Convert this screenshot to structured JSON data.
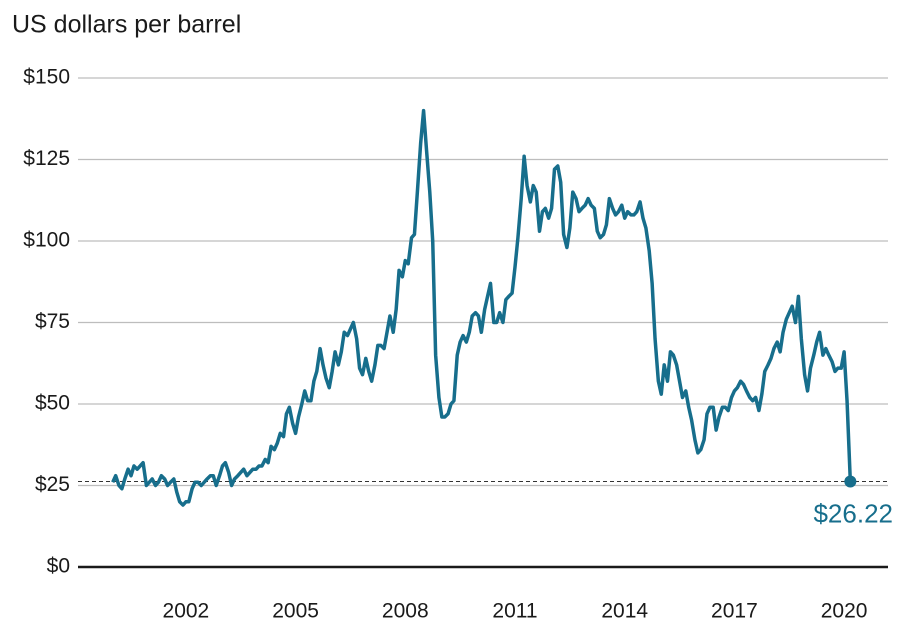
{
  "chart_data": {
    "type": "line",
    "title": "US dollars per barrel",
    "xlim": [
      1999.05,
      2021.2
    ],
    "xticks": [
      2002,
      2005,
      2008,
      2011,
      2014,
      2017,
      2020
    ],
    "ylim": [
      0,
      150
    ],
    "yticks": [
      {
        "value": 0,
        "label": "$0"
      },
      {
        "value": 25,
        "label": "$25"
      },
      {
        "value": 50,
        "label": "$50"
      },
      {
        "value": 75,
        "label": "$75"
      },
      {
        "value": 100,
        "label": "$100"
      },
      {
        "value": 125,
        "label": "$125"
      },
      {
        "value": 150,
        "label": "$150"
      }
    ],
    "grid": true,
    "annotation": {
      "value": 26.22,
      "label": "$26.22"
    },
    "series": [
      {
        "color": "#176e8c",
        "x": [
          2000,
          2000.08,
          2000.17,
          2000.25,
          2000.33,
          2000.42,
          2000.5,
          2000.58,
          2000.67,
          2000.75,
          2000.83,
          2000.92,
          2001,
          2001.08,
          2001.17,
          2001.25,
          2001.33,
          2001.42,
          2001.5,
          2001.58,
          2001.67,
          2001.75,
          2001.83,
          2001.92,
          2002,
          2002.08,
          2002.17,
          2002.25,
          2002.33,
          2002.42,
          2002.5,
          2002.58,
          2002.67,
          2002.75,
          2002.83,
          2002.92,
          2003,
          2003.08,
          2003.17,
          2003.25,
          2003.33,
          2003.42,
          2003.5,
          2003.58,
          2003.67,
          2003.75,
          2003.83,
          2003.92,
          2004,
          2004.08,
          2004.17,
          2004.25,
          2004.33,
          2004.42,
          2004.5,
          2004.58,
          2004.67,
          2004.75,
          2004.83,
          2004.92,
          2005,
          2005.08,
          2005.17,
          2005.25,
          2005.33,
          2005.42,
          2005.5,
          2005.58,
          2005.67,
          2005.75,
          2005.83,
          2005.92,
          2006,
          2006.08,
          2006.17,
          2006.25,
          2006.33,
          2006.42,
          2006.5,
          2006.58,
          2006.67,
          2006.75,
          2006.83,
          2006.92,
          2007,
          2007.08,
          2007.17,
          2007.25,
          2007.33,
          2007.42,
          2007.5,
          2007.58,
          2007.67,
          2007.75,
          2007.83,
          2007.92,
          2008,
          2008.08,
          2008.17,
          2008.25,
          2008.33,
          2008.42,
          2008.5,
          2008.58,
          2008.67,
          2008.75,
          2008.83,
          2008.92,
          2009,
          2009.08,
          2009.17,
          2009.25,
          2009.33,
          2009.42,
          2009.5,
          2009.58,
          2009.67,
          2009.75,
          2009.83,
          2009.92,
          2010,
          2010.08,
          2010.17,
          2010.25,
          2010.33,
          2010.42,
          2010.5,
          2010.58,
          2010.67,
          2010.75,
          2010.83,
          2010.92,
          2011,
          2011.08,
          2011.17,
          2011.25,
          2011.33,
          2011.42,
          2011.5,
          2011.58,
          2011.67,
          2011.75,
          2011.83,
          2011.92,
          2012,
          2012.08,
          2012.17,
          2012.25,
          2012.33,
          2012.42,
          2012.5,
          2012.58,
          2012.67,
          2012.75,
          2012.83,
          2012.92,
          2013,
          2013.08,
          2013.17,
          2013.25,
          2013.33,
          2013.42,
          2013.5,
          2013.58,
          2013.67,
          2013.75,
          2013.83,
          2013.92,
          2014,
          2014.08,
          2014.17,
          2014.25,
          2014.33,
          2014.42,
          2014.5,
          2014.58,
          2014.67,
          2014.75,
          2014.83,
          2014.92,
          2015,
          2015.08,
          2015.17,
          2015.25,
          2015.33,
          2015.42,
          2015.5,
          2015.58,
          2015.67,
          2015.75,
          2015.83,
          2015.92,
          2016,
          2016.08,
          2016.17,
          2016.25,
          2016.33,
          2016.42,
          2016.5,
          2016.58,
          2016.67,
          2016.75,
          2016.83,
          2016.92,
          2017,
          2017.08,
          2017.17,
          2017.25,
          2017.33,
          2017.42,
          2017.5,
          2017.58,
          2017.67,
          2017.75,
          2017.83,
          2017.92,
          2018,
          2018.08,
          2018.17,
          2018.25,
          2018.33,
          2018.42,
          2018.5,
          2018.58,
          2018.67,
          2018.75,
          2018.83,
          2018.92,
          2019,
          2019.08,
          2019.17,
          2019.25,
          2019.33,
          2019.42,
          2019.5,
          2019.58,
          2019.67,
          2019.75,
          2019.83,
          2019.92,
          2020,
          2020.08,
          2020.17
        ],
        "values": [
          26,
          28,
          25,
          24,
          27,
          30,
          28,
          31,
          30,
          31,
          32,
          25,
          26,
          27,
          25,
          26,
          28,
          27,
          25,
          26,
          27,
          23,
          20,
          19,
          20,
          20,
          24,
          26,
          26,
          25,
          26,
          27,
          28,
          28,
          25,
          28,
          31,
          32,
          29,
          25,
          27,
          28,
          29,
          30,
          28,
          29,
          30,
          30,
          31,
          31,
          33,
          32,
          37,
          36,
          38,
          41,
          40,
          47,
          49,
          44,
          41,
          46,
          50,
          54,
          51,
          51,
          57,
          60,
          67,
          62,
          58,
          55,
          60,
          66,
          62,
          66,
          72,
          71,
          73,
          75,
          70,
          61,
          59,
          64,
          60,
          57,
          62,
          68,
          68,
          67,
          72,
          77,
          72,
          79,
          91,
          89,
          94,
          93,
          101,
          102,
          115,
          130,
          140,
          128,
          115,
          100,
          65,
          52,
          46,
          46,
          47,
          50,
          51,
          65,
          69,
          71,
          69,
          72,
          77,
          78,
          77,
          72,
          79,
          83,
          87,
          75,
          75,
          78,
          75,
          82,
          83,
          84,
          92,
          101,
          113,
          126,
          117,
          112,
          117,
          115,
          103,
          109,
          110,
          107,
          110,
          122,
          123,
          118,
          102,
          98,
          104,
          115,
          113,
          109,
          110,
          111,
          113,
          111,
          110,
          103,
          101,
          102,
          105,
          113,
          110,
          108,
          109,
          111,
          107,
          109,
          108,
          108,
          109,
          112,
          107,
          104,
          97,
          87,
          70,
          57,
          53,
          62,
          57,
          66,
          65,
          62,
          57,
          52,
          54,
          49,
          45,
          39,
          35,
          36,
          39,
          47,
          49,
          49,
          42,
          46,
          49,
          49,
          48,
          52,
          54,
          55,
          57,
          56,
          54,
          52,
          51,
          52,
          48,
          53,
          60,
          62,
          64,
          67,
          69,
          66,
          72,
          76,
          78,
          80,
          75,
          83,
          70,
          59,
          54,
          61,
          65,
          69,
          72,
          65,
          67,
          65,
          63,
          60,
          61,
          61,
          66,
          51,
          26.22
        ]
      }
    ]
  }
}
